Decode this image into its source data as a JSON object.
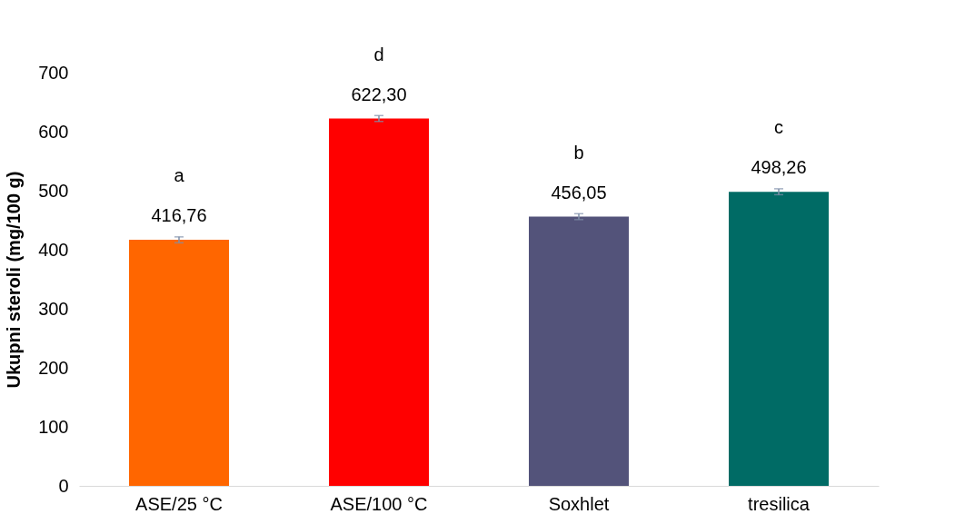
{
  "chart_data": {
    "type": "bar",
    "ylabel": "Ukupni steroli (mg/100 g)",
    "categories": [
      "ASE/25 °C",
      "ASE/100 °C",
      "Soxhlet",
      "tresilica"
    ],
    "values": [
      416.76,
      622.3,
      456.05,
      498.26
    ],
    "colors": [
      "#ff6600",
      "#ff0000",
      "#53537a",
      "#006b65"
    ],
    "errors": [
      5,
      5,
      5,
      5
    ],
    "value_labels": [
      "416,76",
      "622,30",
      "456,05",
      "498,26"
    ],
    "annotations": [
      "a",
      "d",
      "b",
      "c"
    ],
    "ylim": [
      0,
      700
    ],
    "yticks": [
      0,
      100,
      200,
      300,
      400,
      500,
      600,
      700
    ],
    "grid": false,
    "legend": false
  }
}
